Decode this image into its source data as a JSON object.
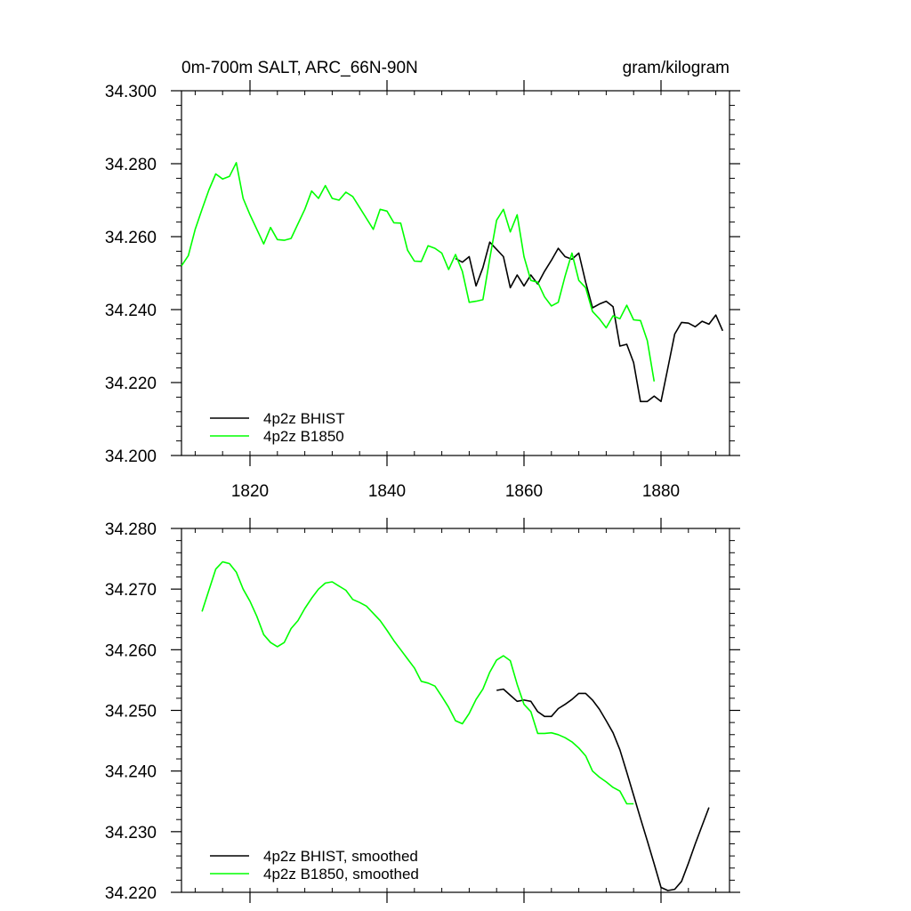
{
  "colors": {
    "bhist": "#000000",
    "b1850": "#00ff00",
    "axis": "#000000",
    "background": "#ffffff"
  },
  "chart_data": [
    {
      "type": "line",
      "title_left": "0m-700m SALT, ARC_66N-90N",
      "title_right": "gram/kilogram",
      "xlim": [
        1810,
        1890
      ],
      "ylim": [
        34.2,
        34.3
      ],
      "x_ticks": [
        1820,
        1840,
        1860,
        1880
      ],
      "x_tick_labels": [
        "1820",
        "1840",
        "1860",
        "1880"
      ],
      "y_ticks": [
        34.2,
        34.22,
        34.24,
        34.26,
        34.28,
        34.3
      ],
      "y_tick_labels": [
        "34.200",
        "34.220",
        "34.240",
        "34.260",
        "34.280",
        "34.300"
      ],
      "legend_position": "bottom-left",
      "series": [
        {
          "name": "4p2z BHIST",
          "color": "#000000",
          "x": [
            1850,
            1851,
            1852,
            1853,
            1854,
            1855,
            1856,
            1857,
            1858,
            1859,
            1860,
            1861,
            1862,
            1863,
            1864,
            1865,
            1866,
            1867,
            1868,
            1869,
            1870,
            1871,
            1872,
            1873,
            1874,
            1875,
            1876,
            1877,
            1878,
            1879,
            1880,
            1881,
            1882,
            1883,
            1884,
            1885,
            1886,
            1887,
            1888,
            1889
          ],
          "values": [
            34.254,
            34.253,
            34.2545,
            34.2465,
            34.2515,
            34.2585,
            34.2565,
            34.2545,
            34.246,
            34.2495,
            34.2465,
            34.2495,
            34.247,
            34.2505,
            34.2535,
            34.2568,
            34.2545,
            34.2538,
            34.2555,
            34.2475,
            34.2405,
            34.2415,
            34.2423,
            34.2408,
            34.23,
            34.2305,
            34.2255,
            34.2148,
            34.2148,
            34.2163,
            34.2148,
            34.224,
            34.2333,
            34.2365,
            34.2363,
            34.2353,
            34.2368,
            34.236,
            34.2385,
            34.2342
          ]
        },
        {
          "name": "4p2z B1850",
          "color": "#00ff00",
          "x": [
            1810,
            1811,
            1812,
            1813,
            1814,
            1815,
            1816,
            1817,
            1818,
            1819,
            1820,
            1821,
            1822,
            1823,
            1824,
            1825,
            1826,
            1827,
            1828,
            1829,
            1830,
            1831,
            1832,
            1833,
            1834,
            1835,
            1836,
            1837,
            1838,
            1839,
            1840,
            1841,
            1842,
            1843,
            1844,
            1845,
            1846,
            1847,
            1848,
            1849,
            1850,
            1851,
            1852,
            1853,
            1854,
            1855,
            1856,
            1857,
            1858,
            1859,
            1860,
            1861,
            1862,
            1863,
            1864,
            1865,
            1866,
            1867,
            1868,
            1869,
            1870,
            1871,
            1872,
            1873,
            1874,
            1875,
            1876,
            1877,
            1878,
            1879
          ],
          "values": [
            34.252,
            34.2548,
            34.262,
            34.2675,
            34.2728,
            34.2772,
            34.2758,
            34.2765,
            34.2803,
            34.2705,
            34.266,
            34.262,
            34.258,
            34.2625,
            34.2592,
            34.259,
            34.2595,
            34.2635,
            34.2675,
            34.2725,
            34.2705,
            34.274,
            34.2705,
            34.27,
            34.2722,
            34.271,
            34.268,
            34.265,
            34.262,
            34.2675,
            34.267,
            34.2638,
            34.2637,
            34.2563,
            34.2533,
            34.2532,
            34.2575,
            34.2568,
            34.2555,
            34.251,
            34.2551,
            34.2505,
            34.242,
            34.2423,
            34.2427,
            34.254,
            34.2645,
            34.2675,
            34.2613,
            34.266,
            34.2545,
            34.248,
            34.2475,
            34.2435,
            34.241,
            34.242,
            34.2492,
            34.2555,
            34.248,
            34.246,
            34.2395,
            34.2375,
            34.235,
            34.2383,
            34.2375,
            34.2412,
            34.2372,
            34.237,
            34.2315,
            34.2203
          ]
        }
      ]
    },
    {
      "type": "line",
      "xlim": [
        1810,
        1890
      ],
      "ylim": [
        34.22,
        34.28
      ],
      "x_ticks": [
        1820,
        1840,
        1860,
        1880
      ],
      "y_ticks": [
        34.22,
        34.23,
        34.24,
        34.25,
        34.26,
        34.27,
        34.28
      ],
      "y_tick_labels": [
        "34.220",
        "34.230",
        "34.240",
        "34.250",
        "34.260",
        "34.270",
        "34.280"
      ],
      "legend_position": "bottom-left",
      "series": [
        {
          "name": "4p2z BHIST, smoothed",
          "color": "#000000",
          "x": [
            1856,
            1857,
            1858,
            1859,
            1860,
            1861,
            1862,
            1863,
            1864,
            1865,
            1866,
            1867,
            1868,
            1869,
            1870,
            1871,
            1872,
            1873,
            1874,
            1875,
            1876,
            1877,
            1878,
            1879,
            1880,
            1881,
            1882,
            1883,
            1884,
            1885,
            1886,
            1887
          ],
          "values": [
            34.2533,
            34.2535,
            34.2525,
            34.2515,
            34.2517,
            34.2515,
            34.2498,
            34.249,
            34.249,
            34.2503,
            34.251,
            34.2518,
            34.2528,
            34.2528,
            34.2517,
            34.2502,
            34.2483,
            34.2463,
            34.2435,
            34.2398,
            34.236,
            34.2322,
            34.2285,
            34.2247,
            34.2208,
            34.2203,
            34.2205,
            34.2218,
            34.2248,
            34.228,
            34.231,
            34.234
          ]
        },
        {
          "name": "4p2z B1850, smoothed",
          "color": "#00ff00",
          "x": [
            1813,
            1814,
            1815,
            1816,
            1817,
            1818,
            1819,
            1820,
            1821,
            1822,
            1823,
            1824,
            1825,
            1826,
            1827,
            1828,
            1829,
            1830,
            1831,
            1832,
            1833,
            1834,
            1835,
            1836,
            1837,
            1838,
            1839,
            1840,
            1841,
            1842,
            1843,
            1844,
            1845,
            1846,
            1847,
            1848,
            1849,
            1850,
            1851,
            1852,
            1853,
            1854,
            1855,
            1856,
            1857,
            1858,
            1859,
            1860,
            1861,
            1862,
            1863,
            1864,
            1865,
            1866,
            1867,
            1868,
            1869,
            1870,
            1871,
            1872,
            1873,
            1874,
            1875,
            1876
          ],
          "values": [
            34.2663,
            34.2698,
            34.2733,
            34.2745,
            34.2742,
            34.2728,
            34.27,
            34.268,
            34.2655,
            34.2625,
            34.2612,
            34.2605,
            34.2612,
            34.2635,
            34.2648,
            34.2668,
            34.2685,
            34.27,
            34.271,
            34.2712,
            34.2705,
            34.2698,
            34.2683,
            34.2678,
            34.2672,
            34.266,
            34.2648,
            34.2632,
            34.2615,
            34.26,
            34.2585,
            34.257,
            34.2548,
            34.2545,
            34.254,
            34.2523,
            34.2505,
            34.2483,
            34.2478,
            34.2495,
            34.2518,
            34.2535,
            34.2563,
            34.2583,
            34.259,
            34.2582,
            34.2543,
            34.251,
            34.2498,
            34.2462,
            34.2462,
            34.2463,
            34.246,
            34.2455,
            34.2448,
            34.2438,
            34.2425,
            34.24,
            34.239,
            34.2382,
            34.2373,
            34.2367,
            34.2346,
            34.2346
          ]
        }
      ]
    }
  ]
}
